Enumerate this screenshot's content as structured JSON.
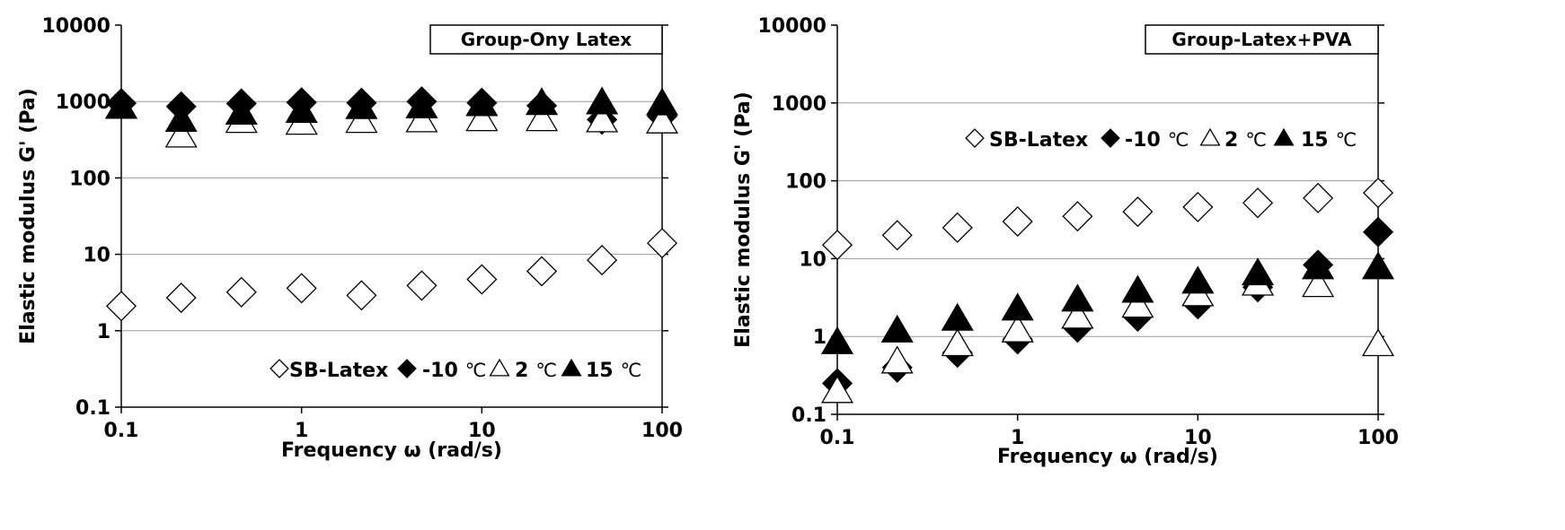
{
  "chart_data": [
    {
      "type": "scatter",
      "title": "Group-Ony Latex",
      "xlabel": "Frequency ω (rad/s)",
      "ylabel": "Elastic modulus G' (Pa)",
      "xscale": "log",
      "yscale": "log",
      "xlim": [
        0.1,
        100
      ],
      "ylim": [
        0.1,
        10000
      ],
      "xticks": [
        "0.1",
        "1",
        "10",
        "100"
      ],
      "yticks": [
        "0.1",
        "1",
        "10",
        "100",
        "1000",
        "10000"
      ],
      "legend_location": "bottom-right",
      "x": [
        0.1,
        0.215,
        0.464,
        1,
        2.15,
        4.64,
        10,
        21.5,
        46.4,
        100
      ],
      "series": [
        {
          "name": "SB-Latex",
          "label": "SB-Latex",
          "unit": "",
          "marker": "diamond-open",
          "values": [
            2.1,
            2.7,
            3.2,
            3.6,
            2.9,
            3.9,
            4.7,
            6.0,
            8.4,
            14
          ]
        },
        {
          "name": "-10 ℃",
          "label": "-10",
          "unit": "℃",
          "marker": "diamond-filled",
          "values": [
            950,
            860,
            940,
            970,
            960,
            1000,
            960,
            880,
            580,
            640
          ]
        },
        {
          "name": "2 ℃",
          "label": "2",
          "unit": "℃",
          "marker": "triangle-open",
          "values": [
            860,
            360,
            560,
            530,
            560,
            570,
            590,
            590,
            570,
            550
          ]
        },
        {
          "name": "15 ℃",
          "label": "15",
          "unit": "℃",
          "marker": "triangle-filled",
          "values": [
            860,
            580,
            720,
            760,
            850,
            870,
            930,
            960,
            980,
            950
          ]
        }
      ]
    },
    {
      "type": "scatter",
      "title": "Group-Latex+PVA",
      "xlabel": "Frequency ω (rad/s)",
      "ylabel": "Elastic modulus G' (Pa)",
      "xscale": "log",
      "yscale": "log",
      "xlim": [
        0.1,
        100
      ],
      "ylim": [
        0.1,
        10000
      ],
      "xticks": [
        "0.1",
        "1",
        "10",
        "100"
      ],
      "yticks": [
        "0.1",
        "1",
        "10",
        "100",
        "1000",
        "10000"
      ],
      "legend_location": "upper-center",
      "x": [
        0.1,
        0.215,
        0.464,
        1,
        2.15,
        4.64,
        10,
        21.5,
        46.4,
        100
      ],
      "series": [
        {
          "name": "SB-Latex",
          "label": "SB-Latex",
          "unit": "",
          "marker": "diamond-open",
          "values": [
            15,
            20,
            25,
            30,
            35,
            40,
            46,
            52,
            60,
            70
          ]
        },
        {
          "name": "-10 ℃",
          "label": "-10",
          "unit": "℃",
          "marker": "diamond-filled",
          "values": [
            0.25,
            0.4,
            0.62,
            0.92,
            1.3,
            1.8,
            2.6,
            4.3,
            8.3,
            22
          ]
        },
        {
          "name": "2 ℃",
          "label": "2",
          "unit": "℃",
          "marker": "triangle-open",
          "values": [
            0.2,
            0.48,
            0.8,
            1.2,
            1.8,
            2.5,
            3.5,
            4.8,
            4.6,
            0.8
          ]
        },
        {
          "name": "15 ℃",
          "label": "15",
          "unit": "℃",
          "marker": "triangle-filled",
          "values": [
            0.85,
            1.2,
            1.7,
            2.3,
            3.0,
            3.9,
            5.1,
            6.5,
            7.8,
            7.8
          ]
        }
      ]
    }
  ]
}
